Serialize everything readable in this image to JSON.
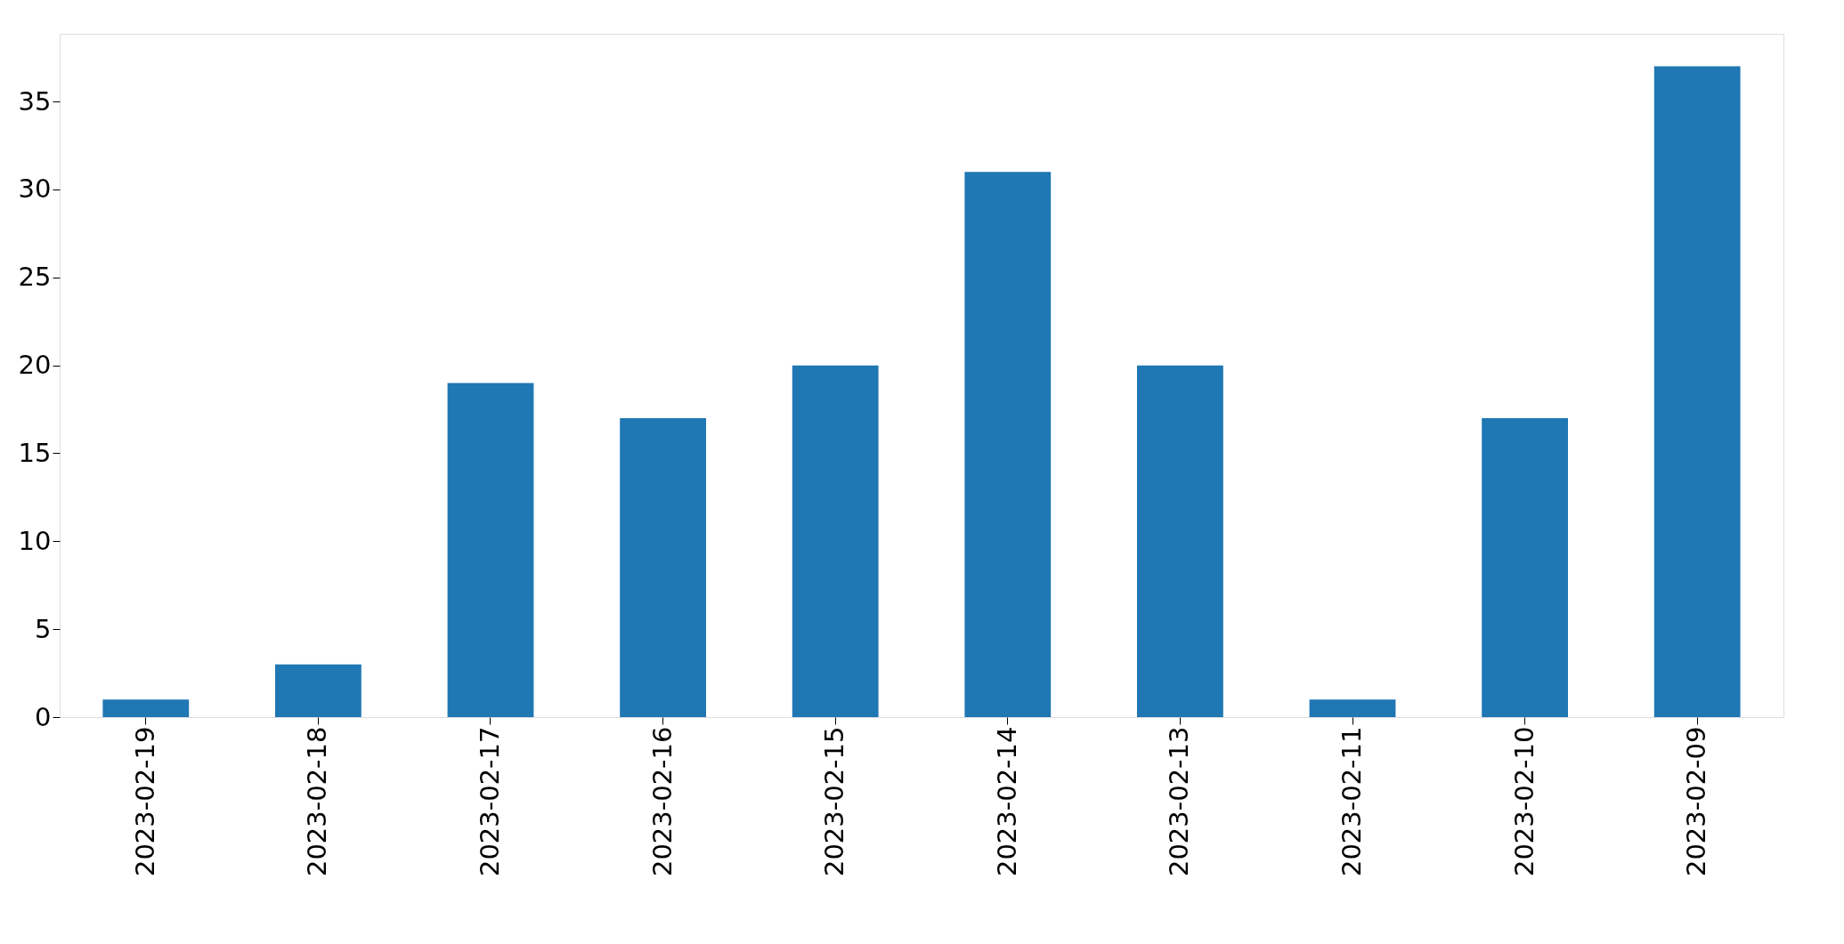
{
  "chart_data": {
    "type": "bar",
    "categories": [
      "2023-02-19",
      "2023-02-18",
      "2023-02-17",
      "2023-02-16",
      "2023-02-15",
      "2023-02-14",
      "2023-02-13",
      "2023-02-11",
      "2023-02-10",
      "2023-02-09"
    ],
    "values": [
      1,
      3,
      19,
      17,
      20,
      31,
      20,
      1,
      17,
      37
    ],
    "color": "#1f77b4",
    "ylim": [
      0,
      38.85
    ],
    "yticks": [
      0,
      5,
      10,
      15,
      20,
      25,
      30,
      35
    ],
    "grid": false
  }
}
